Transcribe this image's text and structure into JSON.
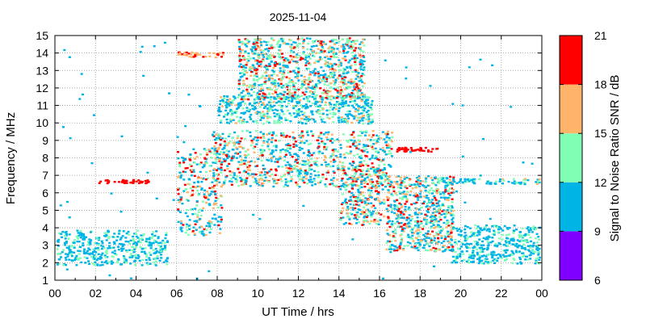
{
  "chart_data": {
    "type": "heatmap",
    "title": "2025-11-04",
    "xlabel": "UT Time / hrs",
    "ylabel": "Frequency / MHz",
    "xlim": [
      0,
      24
    ],
    "ylim": [
      1,
      15
    ],
    "x_ticks": [
      "00",
      "02",
      "04",
      "06",
      "08",
      "10",
      "12",
      "14",
      "16",
      "18",
      "20",
      "22",
      "00"
    ],
    "y_ticks": [
      "1",
      "2",
      "3",
      "4",
      "5",
      "6",
      "7",
      "8",
      "9",
      "10",
      "11",
      "12",
      "13",
      "14",
      "15"
    ],
    "grid": true,
    "colorbar": {
      "label": "Signal to Noise Ratio SNR / dB",
      "ticks": [
        "6",
        "9",
        "12",
        "15",
        "18",
        "21"
      ],
      "range": [
        6,
        21
      ],
      "bands": [
        {
          "from": 6,
          "to": 9,
          "color": "#8000ff"
        },
        {
          "from": 9,
          "to": 12,
          "color": "#00b4e6"
        },
        {
          "from": 12,
          "to": 15,
          "color": "#80ffb4"
        },
        {
          "from": 15,
          "to": 18,
          "color": "#ffb469"
        },
        {
          "from": 18,
          "to": 21,
          "color": "#ff0000"
        }
      ]
    },
    "clusters": [
      {
        "t0": 0.0,
        "t1": 5.5,
        "f0": 1.9,
        "f1": 3.9,
        "n": 420,
        "snr": [
          9,
          14
        ]
      },
      {
        "t0": 6.0,
        "t1": 8.2,
        "f0": 3.6,
        "f1": 8.6,
        "n": 280,
        "snr": [
          9,
          21
        ]
      },
      {
        "t0": 7.7,
        "t1": 16.6,
        "f0": 6.4,
        "f1": 9.6,
        "n": 900,
        "snr": [
          9,
          21
        ]
      },
      {
        "t0": 8.0,
        "t1": 15.6,
        "f0": 10.0,
        "f1": 11.6,
        "n": 520,
        "snr": [
          9,
          16
        ]
      },
      {
        "t0": 9.0,
        "t1": 15.2,
        "f0": 11.4,
        "f1": 14.9,
        "n": 1000,
        "snr": [
          10,
          21
        ]
      },
      {
        "t0": 14.0,
        "t1": 16.2,
        "f0": 4.2,
        "f1": 7.5,
        "n": 260,
        "snr": [
          9,
          21
        ]
      },
      {
        "t0": 16.3,
        "t1": 19.6,
        "f0": 2.7,
        "f1": 7.0,
        "n": 650,
        "snr": [
          9,
          21
        ]
      },
      {
        "t0": 19.5,
        "t1": 24.0,
        "f0": 2.0,
        "f1": 4.2,
        "n": 420,
        "snr": [
          9,
          14
        ]
      },
      {
        "t0": 18.8,
        "t1": 24.0,
        "f0": 6.55,
        "f1": 6.85,
        "n": 80,
        "snr": [
          9,
          16
        ]
      },
      {
        "t0": 2.0,
        "t1": 4.6,
        "f0": 6.6,
        "f1": 6.8,
        "n": 40,
        "snr": [
          19,
          21
        ]
      },
      {
        "t0": 5.9,
        "t1": 8.3,
        "f0": 13.8,
        "f1": 14.1,
        "n": 40,
        "snr": [
          15,
          21
        ]
      },
      {
        "t0": 16.8,
        "t1": 18.9,
        "f0": 8.4,
        "f1": 8.65,
        "n": 40,
        "snr": [
          19,
          21
        ]
      },
      {
        "t0": 0.0,
        "t1": 24.0,
        "f0": 1.0,
        "f1": 15.0,
        "n": 90,
        "snr": [
          9,
          12
        ]
      }
    ]
  }
}
